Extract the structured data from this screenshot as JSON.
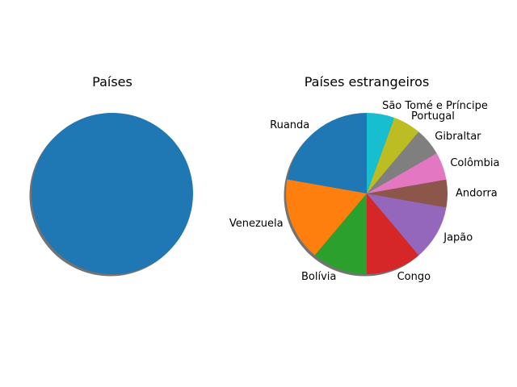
{
  "chart_data": [
    {
      "type": "pie",
      "title": "Países",
      "labels": [
        ""
      ],
      "values": [
        1
      ],
      "colors": [
        "#1f77b4"
      ],
      "start_angle_deg": 90,
      "direction": "counterclockwise",
      "shadow": true
    },
    {
      "type": "pie",
      "title": "Países estrangeiros",
      "labels": [
        "Ruanda",
        "Venezuela",
        "Bolívia",
        "Congo",
        "Japão",
        "Andorra",
        "Colômbia",
        "Gibraltar",
        "Portugal",
        "São Tomé e Príncipe"
      ],
      "values": [
        4,
        3,
        2,
        2,
        2,
        1,
        1,
        1,
        1,
        1
      ],
      "colors": [
        "#1f77b4",
        "#ff7f0e",
        "#2ca02c",
        "#d62728",
        "#9467bd",
        "#8c564b",
        "#e377c2",
        "#7f7f7f",
        "#bcbd22",
        "#17becf"
      ],
      "start_angle_deg": 90,
      "direction": "counterclockwise",
      "shadow": true
    }
  ]
}
